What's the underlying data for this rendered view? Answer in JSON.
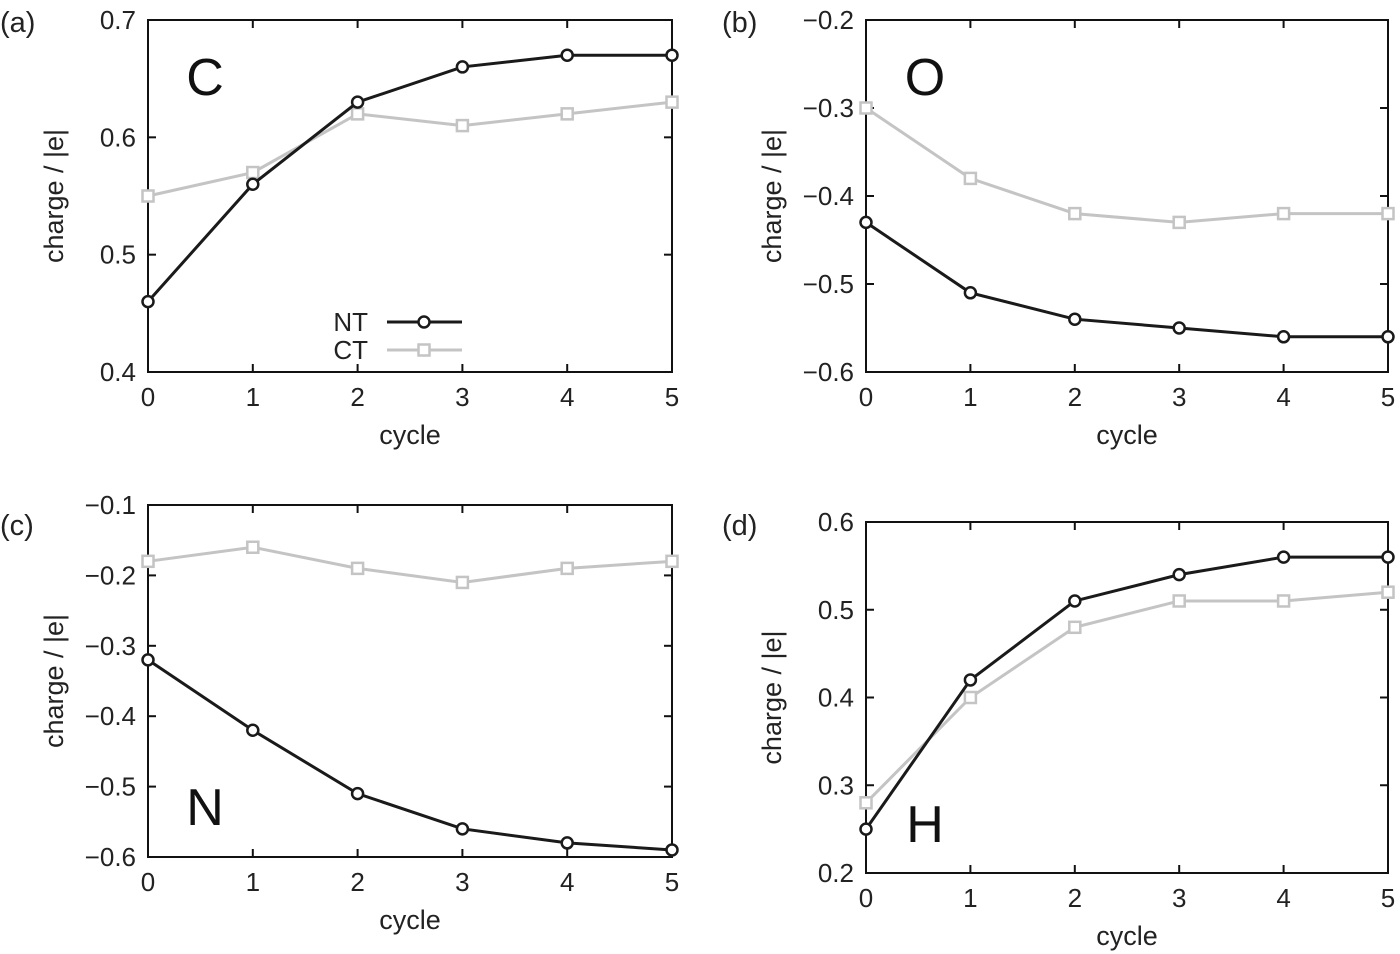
{
  "chart_data": [
    {
      "type": "line",
      "panel_label": "(a)",
      "annotation": "C",
      "xlabel": "cycle",
      "ylabel": "charge / |e|",
      "x": [
        0,
        1,
        2,
        3,
        4,
        5
      ],
      "xlim": [
        0,
        5
      ],
      "ylim": [
        0.4,
        0.7
      ],
      "xticks": [
        "0",
        "1",
        "2",
        "3",
        "4",
        "5"
      ],
      "yticks": [
        "0.4",
        "0.5",
        "0.6",
        "0.7"
      ],
      "grid": false,
      "legend": "bottom-center",
      "series": [
        {
          "name": "NT",
          "color": "#1a1a1a",
          "marker": "circle",
          "values": [
            0.46,
            0.56,
            0.63,
            0.66,
            0.67,
            0.67
          ]
        },
        {
          "name": "CT",
          "color": "#c4c4c4",
          "marker": "square",
          "values": [
            0.55,
            0.57,
            0.62,
            0.61,
            0.62,
            0.63
          ]
        }
      ]
    },
    {
      "type": "line",
      "panel_label": "(b)",
      "annotation": "O",
      "xlabel": "cycle",
      "ylabel": "charge / |e|",
      "x": [
        0,
        1,
        2,
        3,
        4,
        5
      ],
      "xlim": [
        0,
        5
      ],
      "ylim": [
        -0.6,
        -0.2
      ],
      "xticks": [
        "0",
        "1",
        "2",
        "3",
        "4",
        "5"
      ],
      "yticks": [
        "−0.6",
        "−0.5",
        "−0.4",
        "−0.3",
        "−0.2"
      ],
      "grid": false,
      "series": [
        {
          "color": "#1a1a1a",
          "marker": "circle",
          "values": [
            -0.43,
            -0.51,
            -0.54,
            -0.55,
            -0.56,
            -0.56
          ]
        },
        {
          "color": "#c4c4c4",
          "marker": "square",
          "values": [
            -0.3,
            -0.38,
            -0.42,
            -0.43,
            -0.42,
            -0.42
          ]
        }
      ]
    },
    {
      "type": "line",
      "panel_label": "(c)",
      "annotation": "N",
      "xlabel": "cycle",
      "ylabel": "charge / |e|",
      "x": [
        0,
        1,
        2,
        3,
        4,
        5
      ],
      "xlim": [
        0,
        5
      ],
      "ylim": [
        -0.6,
        -0.1
      ],
      "xticks": [
        "0",
        "1",
        "2",
        "3",
        "4",
        "5"
      ],
      "yticks": [
        "−0.6",
        "−0.5",
        "−0.4",
        "−0.3",
        "−0.2",
        "−0.1"
      ],
      "grid": false,
      "series": [
        {
          "color": "#1a1a1a",
          "marker": "circle",
          "values": [
            -0.32,
            -0.42,
            -0.51,
            -0.56,
            -0.58,
            -0.59
          ]
        },
        {
          "color": "#c4c4c4",
          "marker": "square",
          "values": [
            -0.18,
            -0.16,
            -0.19,
            -0.21,
            -0.19,
            -0.18
          ]
        }
      ]
    },
    {
      "type": "line",
      "panel_label": "(d)",
      "annotation": "H",
      "xlabel": "cycle",
      "ylabel": "charge / |e|",
      "x": [
        0,
        1,
        2,
        3,
        4,
        5
      ],
      "xlim": [
        0,
        5
      ],
      "ylim": [
        0.2,
        0.6
      ],
      "xticks": [
        "0",
        "1",
        "2",
        "3",
        "4",
        "5"
      ],
      "yticks": [
        "0.2",
        "0.3",
        "0.4",
        "0.5",
        "0.6"
      ],
      "grid": false,
      "series": [
        {
          "color": "#1a1a1a",
          "marker": "circle",
          "values": [
            0.25,
            0.42,
            0.51,
            0.54,
            0.56,
            0.56
          ]
        },
        {
          "color": "#c4c4c4",
          "marker": "square",
          "values": [
            0.28,
            0.4,
            0.48,
            0.51,
            0.51,
            0.52
          ]
        }
      ]
    }
  ]
}
